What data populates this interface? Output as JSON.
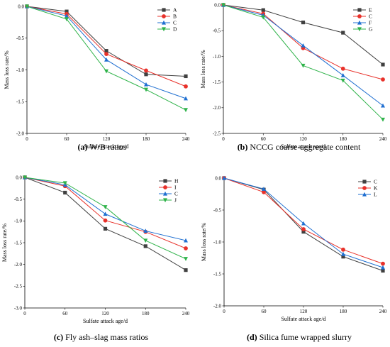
{
  "chart_data": [
    {
      "type": "line",
      "panel_label": "(a)",
      "caption": "W/B ratios",
      "xlabel": "Sulfate attack age/d",
      "ylabel": "Mass loss rate/%",
      "x": [
        0,
        60,
        120,
        180,
        240
      ],
      "xticks": [
        "0",
        "60",
        "120",
        "180",
        "240"
      ],
      "ylim": [
        -2.0,
        0.0
      ],
      "yticks": [
        "0.0",
        "-0.5",
        "-1.0",
        "-1.5",
        "-2.0"
      ],
      "legend_position": "top-right",
      "series": [
        {
          "name": "A",
          "color": "#404040",
          "marker": "square",
          "values": [
            0,
            -0.08,
            -0.7,
            -1.07,
            -1.1
          ]
        },
        {
          "name": "B",
          "color": "#e8312a",
          "marker": "circle",
          "values": [
            0,
            -0.12,
            -0.75,
            -1.01,
            -1.26
          ]
        },
        {
          "name": "C",
          "color": "#1f6fd1",
          "marker": "triangle-up",
          "values": [
            0,
            -0.15,
            -0.84,
            -1.23,
            -1.45
          ]
        },
        {
          "name": "D",
          "color": "#2fb34a",
          "marker": "triangle-down",
          "values": [
            0,
            -0.2,
            -1.02,
            -1.31,
            -1.63
          ]
        }
      ]
    },
    {
      "type": "line",
      "panel_label": "(b)",
      "caption": "NCCG coarse-aggregate content",
      "xlabel": "Sulfate attack age/d",
      "ylabel": "Mass loss rate/%",
      "x": [
        0,
        60,
        120,
        180,
        240
      ],
      "xticks": [
        "0",
        "60",
        "120",
        "180",
        "240"
      ],
      "ylim": [
        -2.5,
        0.0
      ],
      "yticks": [
        "0.0",
        "-0.5",
        "-1.0",
        "-1.5",
        "-2.0",
        "-2.5"
      ],
      "legend_position": "top-right",
      "series": [
        {
          "name": "E",
          "color": "#404040",
          "marker": "square",
          "values": [
            0,
            -0.1,
            -0.34,
            -0.54,
            -1.16
          ]
        },
        {
          "name": "C",
          "color": "#e8312a",
          "marker": "circle",
          "values": [
            0,
            -0.17,
            -0.84,
            -1.24,
            -1.45
          ]
        },
        {
          "name": "F",
          "color": "#1f6fd1",
          "marker": "triangle-up",
          "values": [
            0,
            -0.2,
            -0.79,
            -1.37,
            -1.96
          ]
        },
        {
          "name": "G",
          "color": "#2fb34a",
          "marker": "triangle-down",
          "values": [
            0,
            -0.24,
            -1.18,
            -1.47,
            -2.23
          ]
        }
      ]
    },
    {
      "type": "line",
      "panel_label": "(c)",
      "caption": "Fly ash–slag mass ratios",
      "xlabel": "Sulfate attack age/d",
      "ylabel": "Mass loss rate/%",
      "x": [
        0,
        60,
        120,
        180,
        240
      ],
      "xticks": [
        "0",
        "60",
        "120",
        "180",
        "240"
      ],
      "ylim": [
        -3.0,
        0.0
      ],
      "yticks": [
        "0.0",
        "-0.5",
        "-1.0",
        "-1.5",
        "-2.0",
        "-2.5",
        "-3.0"
      ],
      "legend_position": "top-right",
      "series": [
        {
          "name": "H",
          "color": "#404040",
          "marker": "square",
          "values": [
            0,
            -0.35,
            -1.18,
            -1.58,
            -2.13
          ]
        },
        {
          "name": "I",
          "color": "#e8312a",
          "marker": "circle",
          "values": [
            0,
            -0.2,
            -0.99,
            -1.25,
            -1.63
          ]
        },
        {
          "name": "C",
          "color": "#1f6fd1",
          "marker": "triangle-up",
          "values": [
            0,
            -0.17,
            -0.84,
            -1.23,
            -1.45
          ]
        },
        {
          "name": "J",
          "color": "#2fb34a",
          "marker": "triangle-down",
          "values": [
            0,
            -0.13,
            -0.68,
            -1.45,
            -1.87
          ]
        }
      ]
    },
    {
      "type": "line",
      "panel_label": "(d)",
      "caption": "Silica fume wrapped slurry",
      "xlabel": "Sulfate attack age/d",
      "ylabel": "Mass loss rate/%",
      "x": [
        0,
        60,
        120,
        180,
        240
      ],
      "xticks": [
        "0",
        "60",
        "120",
        "180",
        "240"
      ],
      "ylim": [
        -2.0,
        0.0
      ],
      "yticks": [
        "0.0",
        "-0.5",
        "-1.0",
        "-1.5",
        "-2.0"
      ],
      "legend_position": "top-right",
      "series": [
        {
          "name": "C",
          "color": "#404040",
          "marker": "square",
          "values": [
            0,
            -0.18,
            -0.84,
            -1.23,
            -1.45
          ]
        },
        {
          "name": "K",
          "color": "#e8312a",
          "marker": "circle",
          "values": [
            0,
            -0.22,
            -0.8,
            -1.12,
            -1.34
          ]
        },
        {
          "name": "L",
          "color": "#1f6fd1",
          "marker": "triangle-up",
          "values": [
            0,
            -0.17,
            -0.71,
            -1.19,
            -1.4
          ]
        }
      ]
    }
  ]
}
